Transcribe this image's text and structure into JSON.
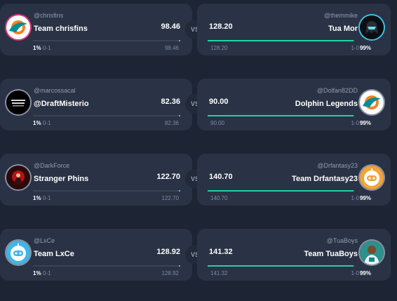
{
  "vs_label": "VS",
  "matchups": [
    {
      "left": {
        "handle": "@chrisfins",
        "team": "Team chrisfins",
        "score": "98.46",
        "pct": "1%",
        "record": "0-1",
        "points": "98.46",
        "win_prob": 0.01,
        "avatar": "dolphin-logo-icon"
      },
      "right": {
        "handle": "@themmike",
        "team": "Tua Mor",
        "score": "128.20",
        "pct": "99%",
        "record": "1-0",
        "points": "128.20",
        "win_prob": 0.99,
        "avatar": "dark-helmet-icon"
      }
    },
    {
      "left": {
        "handle": "@marcossacal",
        "team": "@DraftMisterio",
        "score": "82.36",
        "pct": "1%",
        "record": "0-1",
        "points": "82.36",
        "win_prob": 0.01,
        "avatar": "draft-misterio-logo-icon"
      },
      "right": {
        "handle": "@Dolfan82DD",
        "team": "Dolphin Legends",
        "score": "90.00",
        "pct": "99%",
        "record": "1-0",
        "points": "90.00",
        "win_prob": 0.99,
        "avatar": "dolphin-logo-icon"
      }
    },
    {
      "left": {
        "handle": "@DarkForce",
        "team": "Stranger Phins",
        "score": "122.70",
        "pct": "1%",
        "record": "0-1",
        "points": "122.70",
        "win_prob": 0.01,
        "avatar": "stranger-phins-logo-icon"
      },
      "right": {
        "handle": "@Drfantasy23",
        "team": "Team Drfantasy23",
        "score": "140.70",
        "pct": "99%",
        "record": "1-0",
        "points": "140.70",
        "win_prob": 0.99,
        "avatar": "robot-face-icon"
      }
    },
    {
      "left": {
        "handle": "@LxCe",
        "team": "Team LxCe",
        "score": "128.92",
        "pct": "1%",
        "record": "0-1",
        "points": "128.92",
        "win_prob": 0.01,
        "avatar": "robot-face-icon"
      },
      "right": {
        "handle": "@TuaBoys",
        "team": "Team TuaBoys",
        "score": "141.32",
        "pct": "99%",
        "record": "1-0",
        "points": "141.32",
        "win_prob": 0.99,
        "avatar": "player-photo-icon"
      }
    }
  ]
}
